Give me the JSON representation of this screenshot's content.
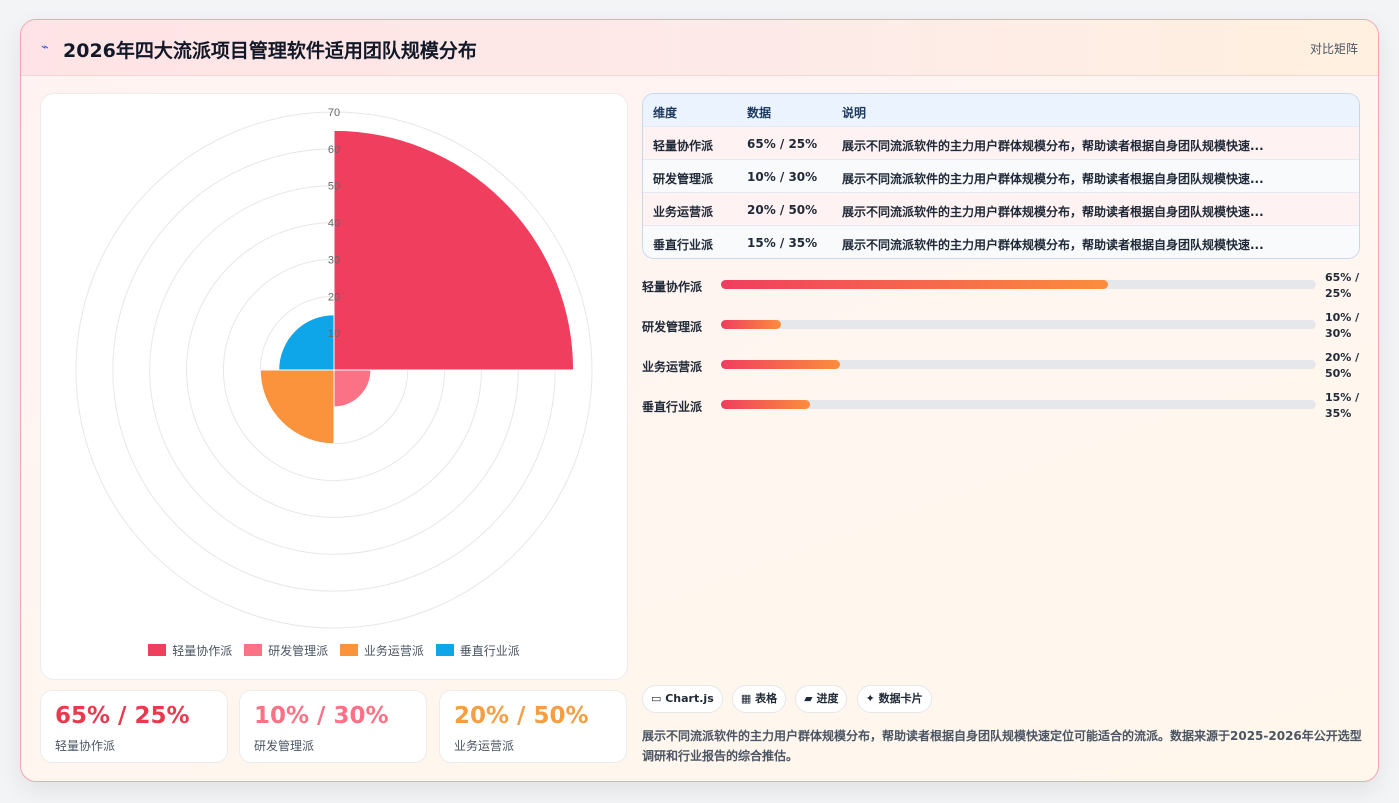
{
  "header": {
    "logo_icon": "chart-line-icon",
    "title": "2026年四大流派项目管理软件适用团队规模分布",
    "tag": "对比矩阵"
  },
  "chart_data": {
    "type": "polarArea",
    "rmax": 70,
    "r_ticks": [
      0,
      10,
      20,
      30,
      40,
      50,
      60,
      70
    ],
    "categories": [
      "轻量协作派",
      "研发管理派",
      "业务运营派",
      "垂直行业派"
    ],
    "values": [
      65,
      10,
      20,
      15
    ],
    "colors": [
      "#f03e5e",
      "#fb7185",
      "#fb923c",
      "#0ea5e9"
    ],
    "legend_position": "bottom",
    "grid": true
  },
  "kpis": [
    {
      "value": "65% / 25%",
      "label": "轻量协作派",
      "color": "#e8394f"
    },
    {
      "value": "10% / 30%",
      "label": "研发管理派",
      "color": "#fb7185"
    },
    {
      "value": "20% / 50%",
      "label": "业务运营派",
      "color": "#f59e42"
    }
  ],
  "table": {
    "headers": [
      "维度",
      "数据",
      "说明"
    ],
    "rows": [
      [
        "轻量协作派",
        "65% / 25%",
        "展示不同流派软件的主力用户群体规模分布，帮助读者根据自身团队规模快速..."
      ],
      [
        "研发管理派",
        "10% / 30%",
        "展示不同流派软件的主力用户群体规模分布，帮助读者根据自身团队规模快速..."
      ],
      [
        "业务运营派",
        "20% / 50%",
        "展示不同流派软件的主力用户群体规模分布，帮助读者根据自身团队规模快速..."
      ],
      [
        "垂直行业派",
        "15% / 35%",
        "展示不同流派软件的主力用户群体规模分布，帮助读者根据自身团队规模快速..."
      ]
    ]
  },
  "progress": [
    {
      "name": "轻量协作派",
      "label": "65% / 25%",
      "value": 0.65
    },
    {
      "name": "研发管理派",
      "label": "10% / 30%",
      "value": 0.1
    },
    {
      "name": "业务运营派",
      "label": "20% / 50%",
      "value": 0.2
    },
    {
      "name": "垂直行业派",
      "label": "15% / 35%",
      "value": 0.15
    }
  ],
  "chips": [
    "Chart.js",
    "表格",
    "进度",
    "数据卡片"
  ],
  "footnote": "展示不同流派软件的主力用户群体规模分布，帮助读者根据自身团队规模快速定位可能适合的流派。数据来源于2025-2026年公开选型调研和行业报告的综合推估。"
}
